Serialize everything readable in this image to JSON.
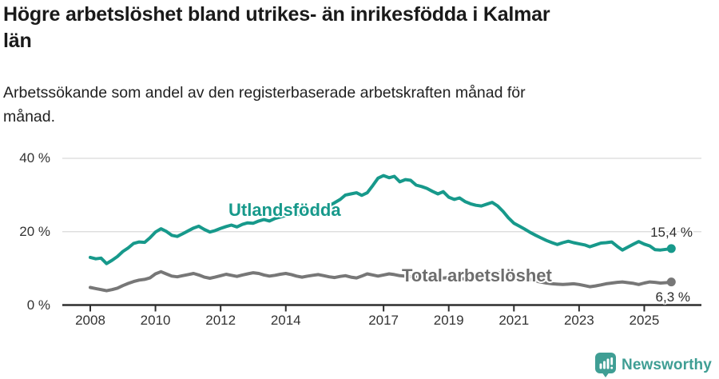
{
  "header": {
    "title_line1": "Högre arbetslöshet bland utrikes- än inrikesfödda i Kalmar",
    "title_line2": "län",
    "subtitle_line1": "Arbetssökande som andel av den registerbaserade arbetskraften månad för",
    "subtitle_line2": "månad."
  },
  "colors": {
    "teal": "#17998b",
    "gray": "#777777",
    "gray_label": "#6d6d6d",
    "gridline": "#d9d9d9",
    "axis": "#2e2e2e",
    "axis_text": "#333333",
    "annotation_text": "#2b2b2b",
    "logo_teal": "#3f9e94"
  },
  "chart_data": {
    "type": "line",
    "title": "Högre arbetslöshet bland utrikes- än inrikesfödda i Kalmar län",
    "subtitle": "Arbetssökande som andel av den registerbaserade arbetskraften månad för månad.",
    "unit": "%",
    "grid": true,
    "legend": "inline-labels",
    "x_axis": {
      "domain": [
        2008,
        2025.83
      ],
      "ticks": [
        2008,
        2010,
        2012,
        2014,
        2017,
        2019,
        2021,
        2023,
        2025
      ],
      "tick_labels": [
        "2008",
        "2010",
        "2012",
        "2014",
        "2017",
        "2019",
        "2021",
        "2023",
        "2025"
      ]
    },
    "y_axis": {
      "domain": [
        0,
        40
      ],
      "ticks": [
        0,
        20,
        40
      ],
      "tick_labels": [
        "0 %",
        "20 %",
        "40 %"
      ]
    },
    "series": [
      {
        "name": "Utlandsfödda",
        "end_label": "15,4 %",
        "end_value": 15.4,
        "points": [
          [
            2008.0,
            13.0
          ],
          [
            2008.17,
            12.6
          ],
          [
            2008.33,
            12.8
          ],
          [
            2008.5,
            11.3
          ],
          [
            2008.67,
            12.2
          ],
          [
            2008.83,
            13.2
          ],
          [
            2009.0,
            14.6
          ],
          [
            2009.17,
            15.6
          ],
          [
            2009.33,
            16.8
          ],
          [
            2009.5,
            17.2
          ],
          [
            2009.67,
            17.1
          ],
          [
            2009.83,
            18.3
          ],
          [
            2010.0,
            19.9
          ],
          [
            2010.17,
            20.8
          ],
          [
            2010.33,
            20.1
          ],
          [
            2010.5,
            19.0
          ],
          [
            2010.67,
            18.7
          ],
          [
            2010.83,
            19.4
          ],
          [
            2011.0,
            20.2
          ],
          [
            2011.17,
            21.0
          ],
          [
            2011.33,
            21.5
          ],
          [
            2011.5,
            20.6
          ],
          [
            2011.67,
            19.9
          ],
          [
            2011.83,
            20.3
          ],
          [
            2012.0,
            20.9
          ],
          [
            2012.17,
            21.4
          ],
          [
            2012.33,
            21.8
          ],
          [
            2012.5,
            21.3
          ],
          [
            2012.67,
            22.0
          ],
          [
            2012.83,
            22.4
          ],
          [
            2013.0,
            22.3
          ],
          [
            2013.17,
            22.9
          ],
          [
            2013.33,
            23.3
          ],
          [
            2013.5,
            22.9
          ],
          [
            2013.67,
            23.6
          ],
          [
            2013.83,
            24.0
          ],
          [
            2014.0,
            24.4
          ],
          [
            2014.17,
            24.9
          ],
          [
            2014.33,
            24.5
          ],
          [
            2014.5,
            25.1
          ],
          [
            2014.67,
            25.6
          ],
          [
            2014.83,
            25.3
          ],
          [
            2015.0,
            26.0
          ],
          [
            2015.17,
            26.6
          ],
          [
            2015.33,
            27.0
          ],
          [
            2015.5,
            27.9
          ],
          [
            2015.67,
            28.8
          ],
          [
            2015.83,
            30.0
          ],
          [
            2016.0,
            30.3
          ],
          [
            2016.17,
            30.6
          ],
          [
            2016.33,
            29.9
          ],
          [
            2016.5,
            30.6
          ],
          [
            2016.67,
            32.6
          ],
          [
            2016.83,
            34.6
          ],
          [
            2017.0,
            35.3
          ],
          [
            2017.17,
            34.7
          ],
          [
            2017.33,
            35.1
          ],
          [
            2017.5,
            33.6
          ],
          [
            2017.67,
            34.2
          ],
          [
            2017.83,
            34.0
          ],
          [
            2018.0,
            32.7
          ],
          [
            2018.17,
            32.3
          ],
          [
            2018.33,
            31.8
          ],
          [
            2018.5,
            31.0
          ],
          [
            2018.67,
            30.3
          ],
          [
            2018.83,
            30.9
          ],
          [
            2019.0,
            29.4
          ],
          [
            2019.17,
            28.8
          ],
          [
            2019.33,
            29.2
          ],
          [
            2019.5,
            28.2
          ],
          [
            2019.67,
            27.6
          ],
          [
            2019.83,
            27.2
          ],
          [
            2020.0,
            27.0
          ],
          [
            2020.17,
            27.5
          ],
          [
            2020.33,
            28.0
          ],
          [
            2020.5,
            27.0
          ],
          [
            2020.67,
            25.5
          ],
          [
            2020.83,
            23.8
          ],
          [
            2021.0,
            22.3
          ],
          [
            2021.17,
            21.5
          ],
          [
            2021.33,
            20.7
          ],
          [
            2021.5,
            19.8
          ],
          [
            2021.67,
            19.0
          ],
          [
            2021.83,
            18.3
          ],
          [
            2022.0,
            17.6
          ],
          [
            2022.17,
            17.0
          ],
          [
            2022.33,
            16.5
          ],
          [
            2022.5,
            17.0
          ],
          [
            2022.67,
            17.4
          ],
          [
            2022.83,
            17.0
          ],
          [
            2023.0,
            16.7
          ],
          [
            2023.17,
            16.4
          ],
          [
            2023.33,
            15.9
          ],
          [
            2023.5,
            16.4
          ],
          [
            2023.67,
            16.9
          ],
          [
            2023.83,
            17.0
          ],
          [
            2024.0,
            17.2
          ],
          [
            2024.17,
            16.0
          ],
          [
            2024.33,
            15.0
          ],
          [
            2024.5,
            15.8
          ],
          [
            2024.67,
            16.6
          ],
          [
            2024.83,
            17.3
          ],
          [
            2025.0,
            16.6
          ],
          [
            2025.17,
            16.1
          ],
          [
            2025.33,
            15.1
          ],
          [
            2025.5,
            15.0
          ],
          [
            2025.67,
            15.2
          ],
          [
            2025.83,
            15.4
          ]
        ]
      },
      {
        "name": "Total arbetslöshet",
        "end_label": "6,3 %",
        "end_value": 6.3,
        "points": [
          [
            2008.0,
            4.8
          ],
          [
            2008.17,
            4.5
          ],
          [
            2008.33,
            4.2
          ],
          [
            2008.5,
            3.9
          ],
          [
            2008.67,
            4.2
          ],
          [
            2008.83,
            4.6
          ],
          [
            2009.0,
            5.3
          ],
          [
            2009.17,
            5.9
          ],
          [
            2009.33,
            6.4
          ],
          [
            2009.5,
            6.8
          ],
          [
            2009.67,
            7.0
          ],
          [
            2009.83,
            7.4
          ],
          [
            2010.0,
            8.5
          ],
          [
            2010.17,
            9.1
          ],
          [
            2010.33,
            8.5
          ],
          [
            2010.5,
            7.9
          ],
          [
            2010.67,
            7.7
          ],
          [
            2010.83,
            8.0
          ],
          [
            2011.0,
            8.3
          ],
          [
            2011.17,
            8.6
          ],
          [
            2011.33,
            8.2
          ],
          [
            2011.5,
            7.6
          ],
          [
            2011.67,
            7.3
          ],
          [
            2011.83,
            7.6
          ],
          [
            2012.0,
            8.0
          ],
          [
            2012.17,
            8.4
          ],
          [
            2012.33,
            8.1
          ],
          [
            2012.5,
            7.8
          ],
          [
            2012.67,
            8.2
          ],
          [
            2012.83,
            8.5
          ],
          [
            2013.0,
            8.8
          ],
          [
            2013.17,
            8.6
          ],
          [
            2013.33,
            8.2
          ],
          [
            2013.5,
            7.9
          ],
          [
            2013.67,
            8.1
          ],
          [
            2013.83,
            8.4
          ],
          [
            2014.0,
            8.6
          ],
          [
            2014.17,
            8.3
          ],
          [
            2014.33,
            7.9
          ],
          [
            2014.5,
            7.6
          ],
          [
            2014.67,
            7.9
          ],
          [
            2014.83,
            8.1
          ],
          [
            2015.0,
            8.3
          ],
          [
            2015.17,
            8.0
          ],
          [
            2015.33,
            7.7
          ],
          [
            2015.5,
            7.5
          ],
          [
            2015.67,
            7.8
          ],
          [
            2015.83,
            8.0
          ],
          [
            2016.0,
            7.6
          ],
          [
            2016.17,
            7.4
          ],
          [
            2016.33,
            7.9
          ],
          [
            2016.5,
            8.5
          ],
          [
            2016.67,
            8.2
          ],
          [
            2016.83,
            7.9
          ],
          [
            2017.0,
            8.2
          ],
          [
            2017.17,
            8.5
          ],
          [
            2017.33,
            8.3
          ],
          [
            2017.5,
            8.0
          ],
          [
            2017.75,
            7.8
          ],
          [
            2018.0,
            7.6
          ],
          [
            2018.25,
            7.4
          ],
          [
            2018.5,
            7.1
          ],
          [
            2018.75,
            7.3
          ],
          [
            2019.0,
            7.5
          ],
          [
            2019.25,
            7.3
          ],
          [
            2019.5,
            7.1
          ],
          [
            2019.75,
            7.2
          ],
          [
            2020.0,
            7.4
          ],
          [
            2020.25,
            8.6
          ],
          [
            2020.5,
            8.9
          ],
          [
            2020.75,
            8.4
          ],
          [
            2021.0,
            8.0
          ],
          [
            2021.25,
            7.6
          ],
          [
            2021.5,
            7.0
          ],
          [
            2021.75,
            6.4
          ],
          [
            2022.0,
            6.0
          ],
          [
            2022.17,
            5.8
          ],
          [
            2022.33,
            5.7
          ],
          [
            2022.5,
            5.6
          ],
          [
            2022.67,
            5.7
          ],
          [
            2022.83,
            5.8
          ],
          [
            2023.0,
            5.6
          ],
          [
            2023.17,
            5.3
          ],
          [
            2023.33,
            5.0
          ],
          [
            2023.5,
            5.2
          ],
          [
            2023.67,
            5.5
          ],
          [
            2023.83,
            5.8
          ],
          [
            2024.0,
            6.0
          ],
          [
            2024.17,
            6.2
          ],
          [
            2024.33,
            6.3
          ],
          [
            2024.5,
            6.1
          ],
          [
            2024.67,
            5.9
          ],
          [
            2024.83,
            5.6
          ],
          [
            2025.0,
            6.0
          ],
          [
            2025.17,
            6.3
          ],
          [
            2025.33,
            6.2
          ],
          [
            2025.5,
            6.0
          ],
          [
            2025.67,
            6.1
          ],
          [
            2025.83,
            6.3
          ]
        ]
      }
    ]
  },
  "footer": {
    "brand": "Newsworthy"
  }
}
